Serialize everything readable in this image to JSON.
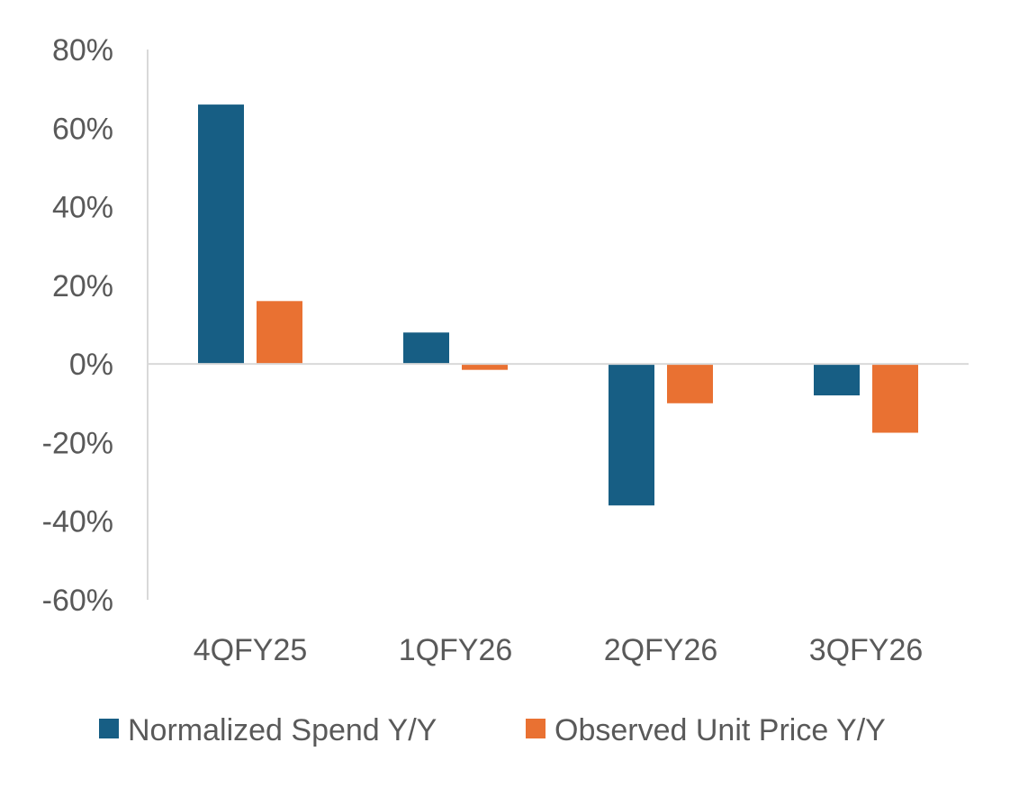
{
  "chart_data": {
    "type": "bar",
    "categories": [
      "4QFY25",
      "1QFY26",
      "2QFY26",
      "3QFY26"
    ],
    "series": [
      {
        "name": "Normalized Spend Y/Y",
        "color": "#175E84",
        "values": [
          66,
          8,
          -36,
          -8
        ]
      },
      {
        "name": "Observed Unit Price Y/Y",
        "color": "#E97132",
        "values": [
          16,
          -1.5,
          -10,
          -17.5
        ]
      }
    ],
    "ylim": [
      -60,
      80
    ],
    "y_ticks": [
      80,
      60,
      40,
      20,
      0,
      -20,
      -40,
      -60
    ],
    "y_tick_labels": [
      "80%",
      "60%",
      "40%",
      "20%",
      "0%",
      "-20%",
      "-40%",
      "-60%"
    ],
    "value_format": "percent",
    "xlabel": "",
    "ylabel": "",
    "title": "",
    "grid": false,
    "legend_position": "bottom"
  }
}
